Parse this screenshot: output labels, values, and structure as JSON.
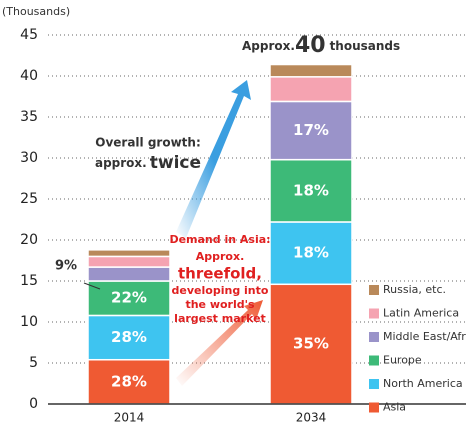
{
  "chart_data": {
    "type": "stacked_bar",
    "unit": "(Thousands)",
    "categories": [
      "2014",
      "2034"
    ],
    "series": [
      {
        "name": "Asia",
        "color": "#ef5a33",
        "values": [
          5.4,
          14.6
        ],
        "value_labels": [
          "28%",
          "35%"
        ]
      },
      {
        "name": "North America",
        "color": "#3ec4f0",
        "values": [
          5.4,
          7.6
        ],
        "value_labels": [
          "28%",
          "18%"
        ]
      },
      {
        "name": "Europe",
        "color": "#3dba78",
        "values": [
          4.2,
          7.6
        ],
        "value_labels": [
          "22%",
          "18%"
        ]
      },
      {
        "name": "Middle East/Africa",
        "color": "#9a93c9",
        "values": [
          1.7,
          7.1
        ],
        "value_labels": [
          "9%",
          "17%"
        ]
      },
      {
        "name": "Latin America",
        "color": "#f5a3b1",
        "values": [
          1.3,
          3.0
        ],
        "value_labels": [
          null,
          null
        ]
      },
      {
        "name": "Russia, etc.",
        "color": "#b9895a",
        "values": [
          0.8,
          1.5
        ],
        "value_labels": [
          null,
          null
        ]
      }
    ],
    "ylim": [
      0,
      45
    ],
    "yticks": [
      0,
      5,
      10,
      15,
      20,
      25,
      30,
      35,
      40,
      45
    ],
    "grid": true,
    "legend": "lower right",
    "annotations": {
      "total": [
        "Approx.",
        "40",
        "thousands"
      ],
      "growth": [
        "Overall growth:",
        "approx.",
        "twice"
      ],
      "asia": [
        "Demand in Asia:",
        "Approx.",
        "threefold,",
        "developing into",
        "the world's",
        "largest market"
      ]
    }
  }
}
